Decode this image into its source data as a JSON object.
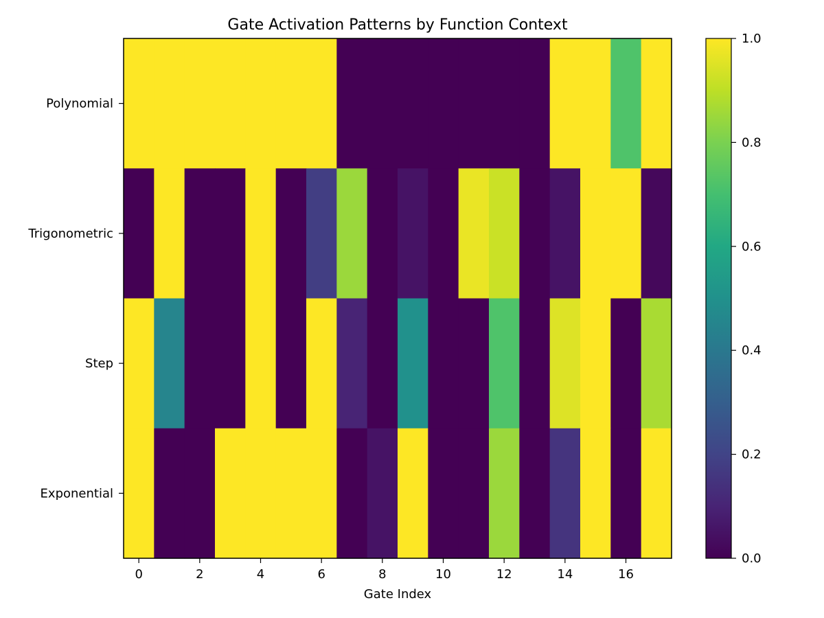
{
  "chart_data": {
    "type": "heatmap",
    "title": "Gate Activation Patterns by Function Context",
    "xlabel": "Gate Index",
    "ylabel": "",
    "rows": [
      "Polynomial",
      "Trigonometric",
      "Step",
      "Exponential"
    ],
    "columns": [
      0,
      1,
      2,
      3,
      4,
      5,
      6,
      7,
      8,
      9,
      10,
      11,
      12,
      13,
      14,
      15,
      16,
      17
    ],
    "x_ticks": [
      0,
      2,
      4,
      6,
      8,
      10,
      12,
      14,
      16
    ],
    "values": [
      [
        1.0,
        1.0,
        1.0,
        1.0,
        1.0,
        1.0,
        1.0,
        0.0,
        0.0,
        0.0,
        0.0,
        0.0,
        0.0,
        0.0,
        1.0,
        1.0,
        0.72,
        1.0
      ],
      [
        0.0,
        1.0,
        0.0,
        0.0,
        1.0,
        0.0,
        0.18,
        0.85,
        0.0,
        0.05,
        0.0,
        0.97,
        0.92,
        0.0,
        0.05,
        1.0,
        1.0,
        0.02
      ],
      [
        1.0,
        0.45,
        0.0,
        0.0,
        1.0,
        0.0,
        1.0,
        0.1,
        0.0,
        0.5,
        0.0,
        0.0,
        0.72,
        0.0,
        0.95,
        1.0,
        0.0,
        0.87
      ],
      [
        1.0,
        0.0,
        0.0,
        1.0,
        1.0,
        1.0,
        1.0,
        0.0,
        0.05,
        1.0,
        0.0,
        0.0,
        0.85,
        0.0,
        0.15,
        1.0,
        0.0,
        1.0
      ]
    ],
    "colormap": "viridis",
    "vmin": 0.0,
    "vmax": 1.0,
    "colorbar_ticks": [
      "0.0",
      "0.2",
      "0.4",
      "0.6",
      "0.8",
      "1.0"
    ]
  }
}
